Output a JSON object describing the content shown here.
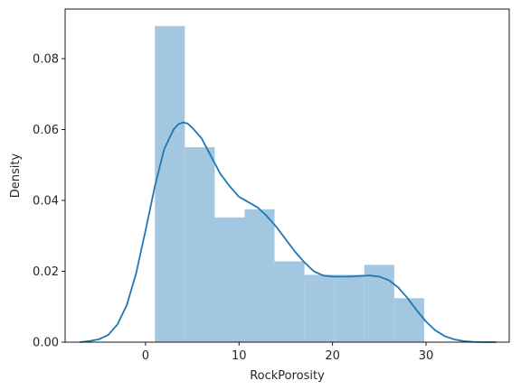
{
  "chart_data": {
    "type": "bar",
    "title": "",
    "xlabel": "RockPorosity",
    "ylabel": "Density",
    "xlim": [
      -8.6,
      38.9
    ],
    "ylim": [
      0,
      0.094
    ],
    "xticks": [
      0,
      10,
      20,
      30
    ],
    "yticks": [
      0.0,
      0.02,
      0.04,
      0.06,
      0.08
    ],
    "xtick_labels": [
      "0",
      "10",
      "20",
      "30"
    ],
    "ytick_labels": [
      "0.00",
      "0.02",
      "0.04",
      "0.06",
      "0.08"
    ],
    "grid": false,
    "legend": "none",
    "histogram": {
      "color": "#a3c7e0",
      "bins": [
        {
          "x0": 1.0,
          "x1": 4.2,
          "density": 0.0892
        },
        {
          "x0": 4.2,
          "x1": 7.4,
          "density": 0.055
        },
        {
          "x0": 7.4,
          "x1": 10.6,
          "density": 0.0352
        },
        {
          "x0": 10.6,
          "x1": 13.8,
          "density": 0.0375
        },
        {
          "x0": 13.8,
          "x1": 17.0,
          "density": 0.0228
        },
        {
          "x0": 17.0,
          "x1": 20.2,
          "density": 0.019
        },
        {
          "x0": 20.2,
          "x1": 23.4,
          "density": 0.019
        },
        {
          "x0": 23.4,
          "x1": 26.6,
          "density": 0.0218
        },
        {
          "x0": 26.6,
          "x1": 29.8,
          "density": 0.0124
        }
      ]
    },
    "kde": {
      "color": "#1f77b4",
      "x": [
        -7,
        -6,
        -5,
        -4,
        -3,
        -2,
        -1,
        0,
        1,
        2,
        3,
        3.5,
        4,
        4.5,
        5,
        6,
        7,
        8,
        9,
        10,
        11,
        12,
        13,
        14,
        15,
        16,
        17,
        18,
        19,
        20,
        21,
        22,
        23,
        24,
        25,
        26,
        27,
        28,
        29,
        30,
        31,
        32,
        33,
        34,
        35,
        36,
        37.5
      ],
      "y": [
        0.0,
        0.0003,
        0.0008,
        0.002,
        0.005,
        0.0105,
        0.0195,
        0.0315,
        0.044,
        0.0545,
        0.06,
        0.0615,
        0.062,
        0.0617,
        0.0605,
        0.0575,
        0.0525,
        0.0475,
        0.044,
        0.041,
        0.0395,
        0.038,
        0.0355,
        0.0325,
        0.029,
        0.0255,
        0.0225,
        0.02,
        0.0188,
        0.0185,
        0.0185,
        0.0185,
        0.0187,
        0.0188,
        0.0185,
        0.0175,
        0.0155,
        0.0125,
        0.009,
        0.0058,
        0.0033,
        0.0017,
        0.0008,
        0.0003,
        0.0001,
        0.0,
        0.0
      ]
    }
  }
}
